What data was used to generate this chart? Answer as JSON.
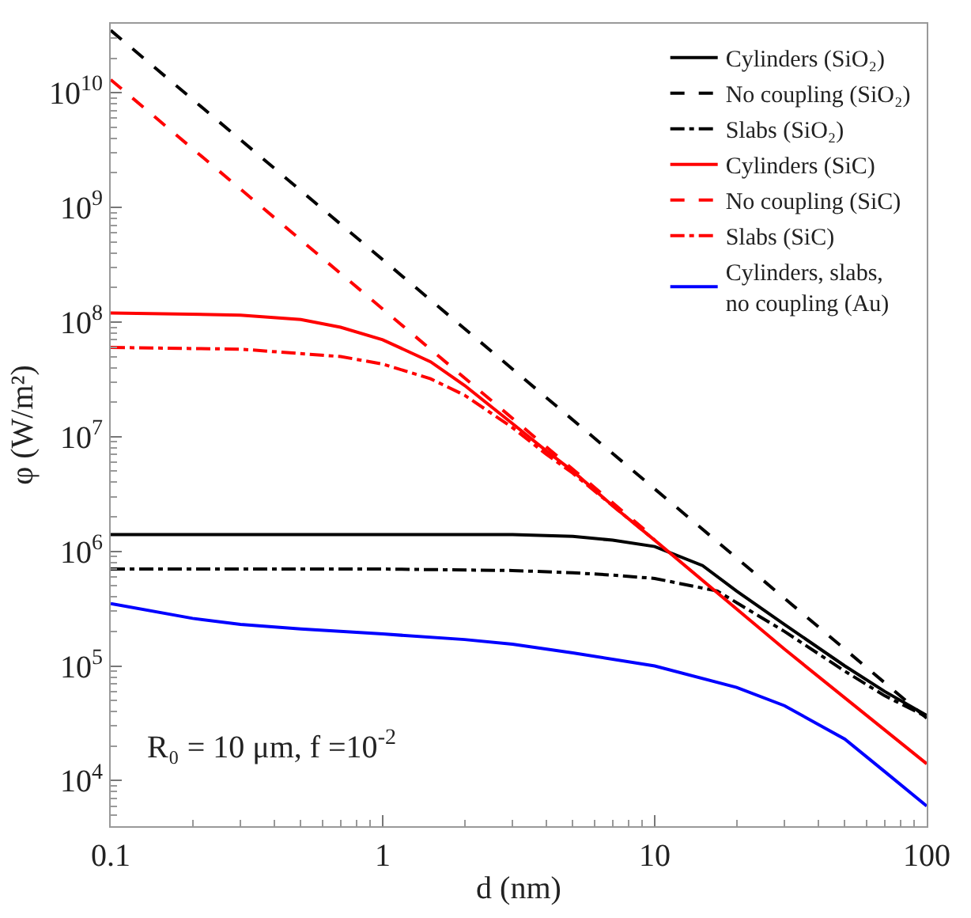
{
  "chart_data": {
    "type": "line",
    "xlabel": "d (nm)",
    "ylabel": "φ (W/m²)",
    "log": "xy",
    "legend": "top right",
    "marker": "none",
    "xlim": [
      0.1,
      100
    ],
    "xticks": [
      0.1,
      1,
      10,
      100
    ],
    "ylim": [
      4000,
      40000000000
    ],
    "yticks": [
      {
        "value": 10000,
        "label": "10$^{4}$"
      },
      {
        "value": 100000,
        "label": "10$^{5}$"
      },
      {
        "value": 1000000,
        "label": "10$^{6}$"
      },
      {
        "value": 10000000,
        "label": "10$^{7}$"
      },
      {
        "value": 100000000,
        "label": "10$^{8}$"
      },
      {
        "value": 1000000000,
        "label": "10$^{9}$"
      },
      {
        "value": 10000000000,
        "label": "10$^{10}$"
      }
    ],
    "annotations": [
      {
        "text": "R₀ = 10 μm, f =10$^{-2}$"
      }
    ],
    "series": [
      {
        "name": "Cylinders (SiO₂)",
        "color": "#000000",
        "line_style": "solid",
        "x": [
          0.1,
          0.3,
          1,
          3,
          5,
          7,
          10,
          15,
          20,
          30,
          50,
          70,
          100
        ],
        "values": [
          1400000,
          1400000,
          1400000,
          1400000,
          1350000,
          1250000,
          1100000,
          750000,
          450000,
          230000,
          100000,
          60000,
          37000
        ]
      },
      {
        "name": "No coupling (SiO₂)",
        "color": "#000000",
        "line_style": "dashed",
        "x": [
          0.1,
          1,
          10,
          100
        ],
        "values": [
          35000000000,
          350000000,
          3500000,
          35000
        ]
      },
      {
        "name": "Slabs (SiO₂)",
        "color": "#000000",
        "line_style": "dashdot",
        "x": [
          0.1,
          0.3,
          1,
          3,
          5,
          7,
          10,
          17,
          30,
          50,
          70,
          100
        ],
        "values": [
          700000,
          700000,
          700000,
          680000,
          650000,
          620000,
          580000,
          450000,
          200000,
          90000,
          55000,
          36000
        ]
      },
      {
        "name": "Cylinders (SiC)",
        "color": "#ff0000",
        "line_style": "solid",
        "x": [
          0.1,
          0.3,
          0.5,
          0.7,
          1,
          1.5,
          2,
          3,
          4,
          5,
          7,
          10,
          30,
          100
        ],
        "values": [
          120000000,
          115000000,
          105000000,
          90000000,
          70000000,
          45000000,
          28000000,
          13000000,
          7500000,
          5000000,
          2500000,
          1250000,
          140000,
          14000
        ]
      },
      {
        "name": "No coupling (SiC)",
        "color": "#ff0000",
        "line_style": "dashed",
        "x": [
          0.1,
          1,
          10
        ],
        "values": [
          13000000000,
          130000000,
          1300000
        ]
      },
      {
        "name": "Slabs (SiC)",
        "color": "#ff0000",
        "line_style": "dashdot",
        "x": [
          0.1,
          0.3,
          0.7,
          1,
          1.5,
          2,
          3,
          4,
          5,
          7,
          10
        ],
        "values": [
          60000000,
          58000000,
          50000000,
          43000000,
          32000000,
          23000000,
          12000000,
          7000000,
          4800000,
          2500000,
          1250000
        ]
      },
      {
        "name": "Cylinders, slabs,\nno coupling (Au)",
        "color": "#0000ff",
        "line_style": "solid",
        "x": [
          0.1,
          0.2,
          0.3,
          0.5,
          1,
          2,
          3,
          5,
          10,
          20,
          30,
          50,
          70,
          100
        ],
        "values": [
          350000,
          260000,
          230000,
          210000,
          190000,
          170000,
          155000,
          130000,
          100000,
          65000,
          45000,
          23000,
          12000,
          6000
        ]
      }
    ]
  }
}
